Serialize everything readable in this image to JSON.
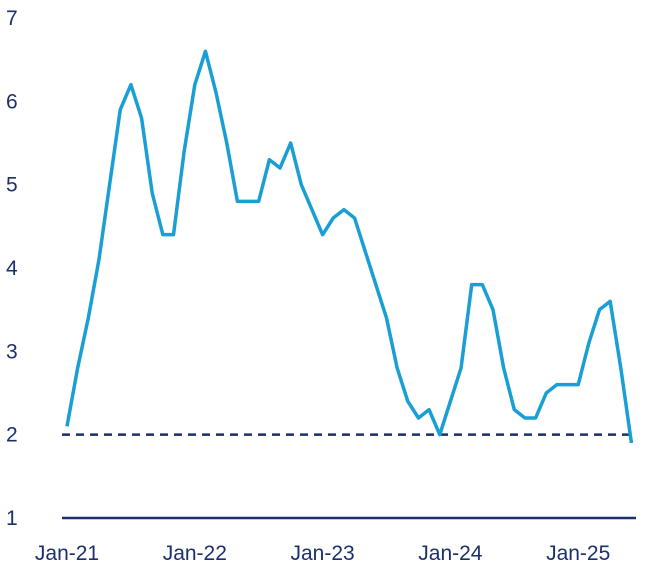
{
  "chart_data": {
    "type": "line",
    "title": "",
    "xlabel": "",
    "ylabel": "",
    "ylim": [
      1,
      7
    ],
    "y_ticks": [
      "1",
      "2",
      "3",
      "4",
      "5",
      "6",
      "7"
    ],
    "x_tick_labels": [
      "Jan-21",
      "Jan-22",
      "Jan-23",
      "Jan-24",
      "Jan-25"
    ],
    "grid": false,
    "legend": "none",
    "colors": {
      "series": "#1a9fd4",
      "reference": "#1b2f6e",
      "axis": "#1b2f6e",
      "text": "#1b2f6e"
    },
    "reference_line": {
      "y": 2,
      "style": "dashed"
    },
    "x": [
      "2021-01",
      "2021-02",
      "2021-03",
      "2021-04",
      "2021-05",
      "2021-06",
      "2021-07",
      "2021-08",
      "2021-09",
      "2021-10",
      "2021-11",
      "2021-12",
      "2022-01",
      "2022-02",
      "2022-03",
      "2022-04",
      "2022-05",
      "2022-06",
      "2022-07",
      "2022-08",
      "2022-09",
      "2022-10",
      "2022-11",
      "2022-12",
      "2023-01",
      "2023-02",
      "2023-03",
      "2023-04",
      "2023-05",
      "2023-06",
      "2023-07",
      "2023-08",
      "2023-09",
      "2023-10",
      "2023-11",
      "2023-12",
      "2024-01",
      "2024-02",
      "2024-03",
      "2024-04",
      "2024-05",
      "2024-06",
      "2024-07",
      "2024-08",
      "2024-09",
      "2024-10",
      "2024-11",
      "2024-12",
      "2025-01",
      "2025-02",
      "2025-03",
      "2025-04",
      "2025-05",
      "2025-06"
    ],
    "series": [
      {
        "values": [
          2.1,
          2.8,
          3.4,
          4.1,
          5.0,
          5.9,
          6.2,
          5.8,
          4.9,
          4.4,
          4.4,
          5.4,
          6.2,
          6.6,
          6.1,
          5.5,
          4.8,
          4.8,
          4.8,
          5.3,
          5.2,
          5.5,
          5.0,
          4.7,
          4.4,
          4.6,
          4.7,
          4.6,
          4.2,
          3.8,
          3.4,
          2.8,
          2.4,
          2.2,
          2.3,
          2.0,
          2.4,
          2.8,
          3.8,
          3.8,
          3.5,
          2.8,
          2.3,
          2.2,
          2.2,
          2.5,
          2.6,
          2.6,
          2.6,
          3.1,
          3.5,
          3.6,
          2.8,
          1.9
        ]
      }
    ]
  }
}
